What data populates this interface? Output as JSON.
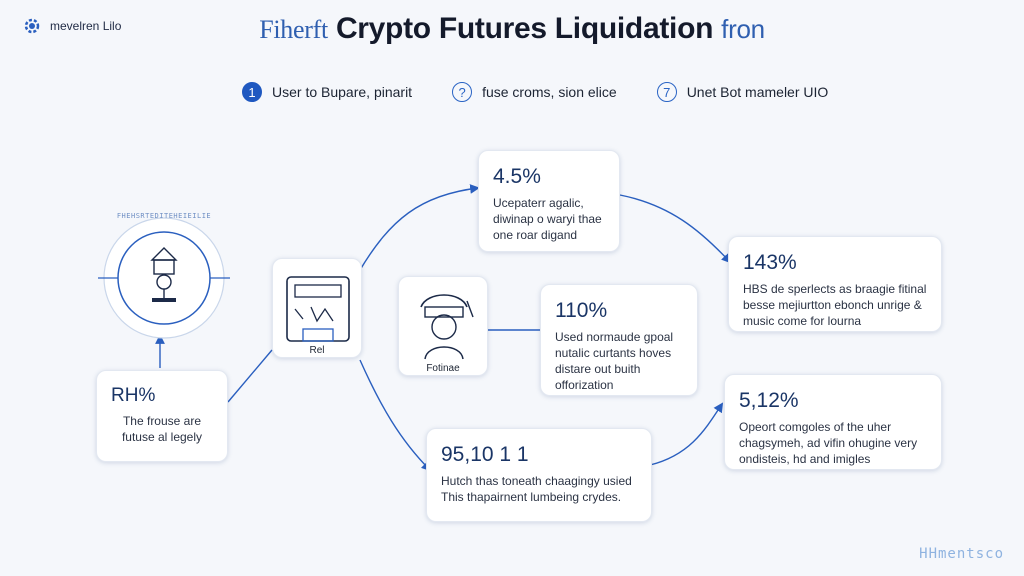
{
  "header": {
    "logo_text": "mevelren Lilo",
    "title_prefix": "Fiherft",
    "title_main": "Crypto Futures Liquidation",
    "title_suffix": "fron"
  },
  "steps": [
    {
      "number": "1",
      "label": "User to Bupare, pinarit",
      "filled": true
    },
    {
      "number": "?",
      "label": "fuse croms, sion elice",
      "filled": false
    },
    {
      "number": "7",
      "label": "Unet Bot mameler UIO",
      "filled": false
    }
  ],
  "nodes": {
    "gear_caption": "FHEHSRTEDITEHEIEILIE",
    "card_left": {
      "value": "RH%",
      "desc": "The frouse are futuse al legely"
    },
    "server": {
      "caption": "Rel"
    },
    "person": {
      "caption": "Fotinae"
    },
    "card_top": {
      "value": "4.5%",
      "desc": "Ucepaterr agalic, diwinap o waryi thae one roar digand"
    },
    "card_mid": {
      "value": "110%",
      "desc": "Used normaude gpoal nutalic curtants hoves distare out buith offorization"
    },
    "card_bottom": {
      "value": "95,10 1 1",
      "desc": "Hutch thas toneath chaagingy usied This thapairnent lumbeing crydes."
    },
    "card_right_top": {
      "value": "143%",
      "desc": "HBS de sperlects as braagie fitinal besse mejiurtton ebonch unrige & music come for lourna"
    },
    "card_right_bottom": {
      "value": "5,12%",
      "desc": "Opeort comgoles of the uher chagsymeh, ad vifin ohugine very ondisteis, hd and imigles"
    }
  },
  "watermark": "HHmentsco",
  "colors": {
    "accent": "#1f58c0",
    "line": "#2a5fbf"
  }
}
